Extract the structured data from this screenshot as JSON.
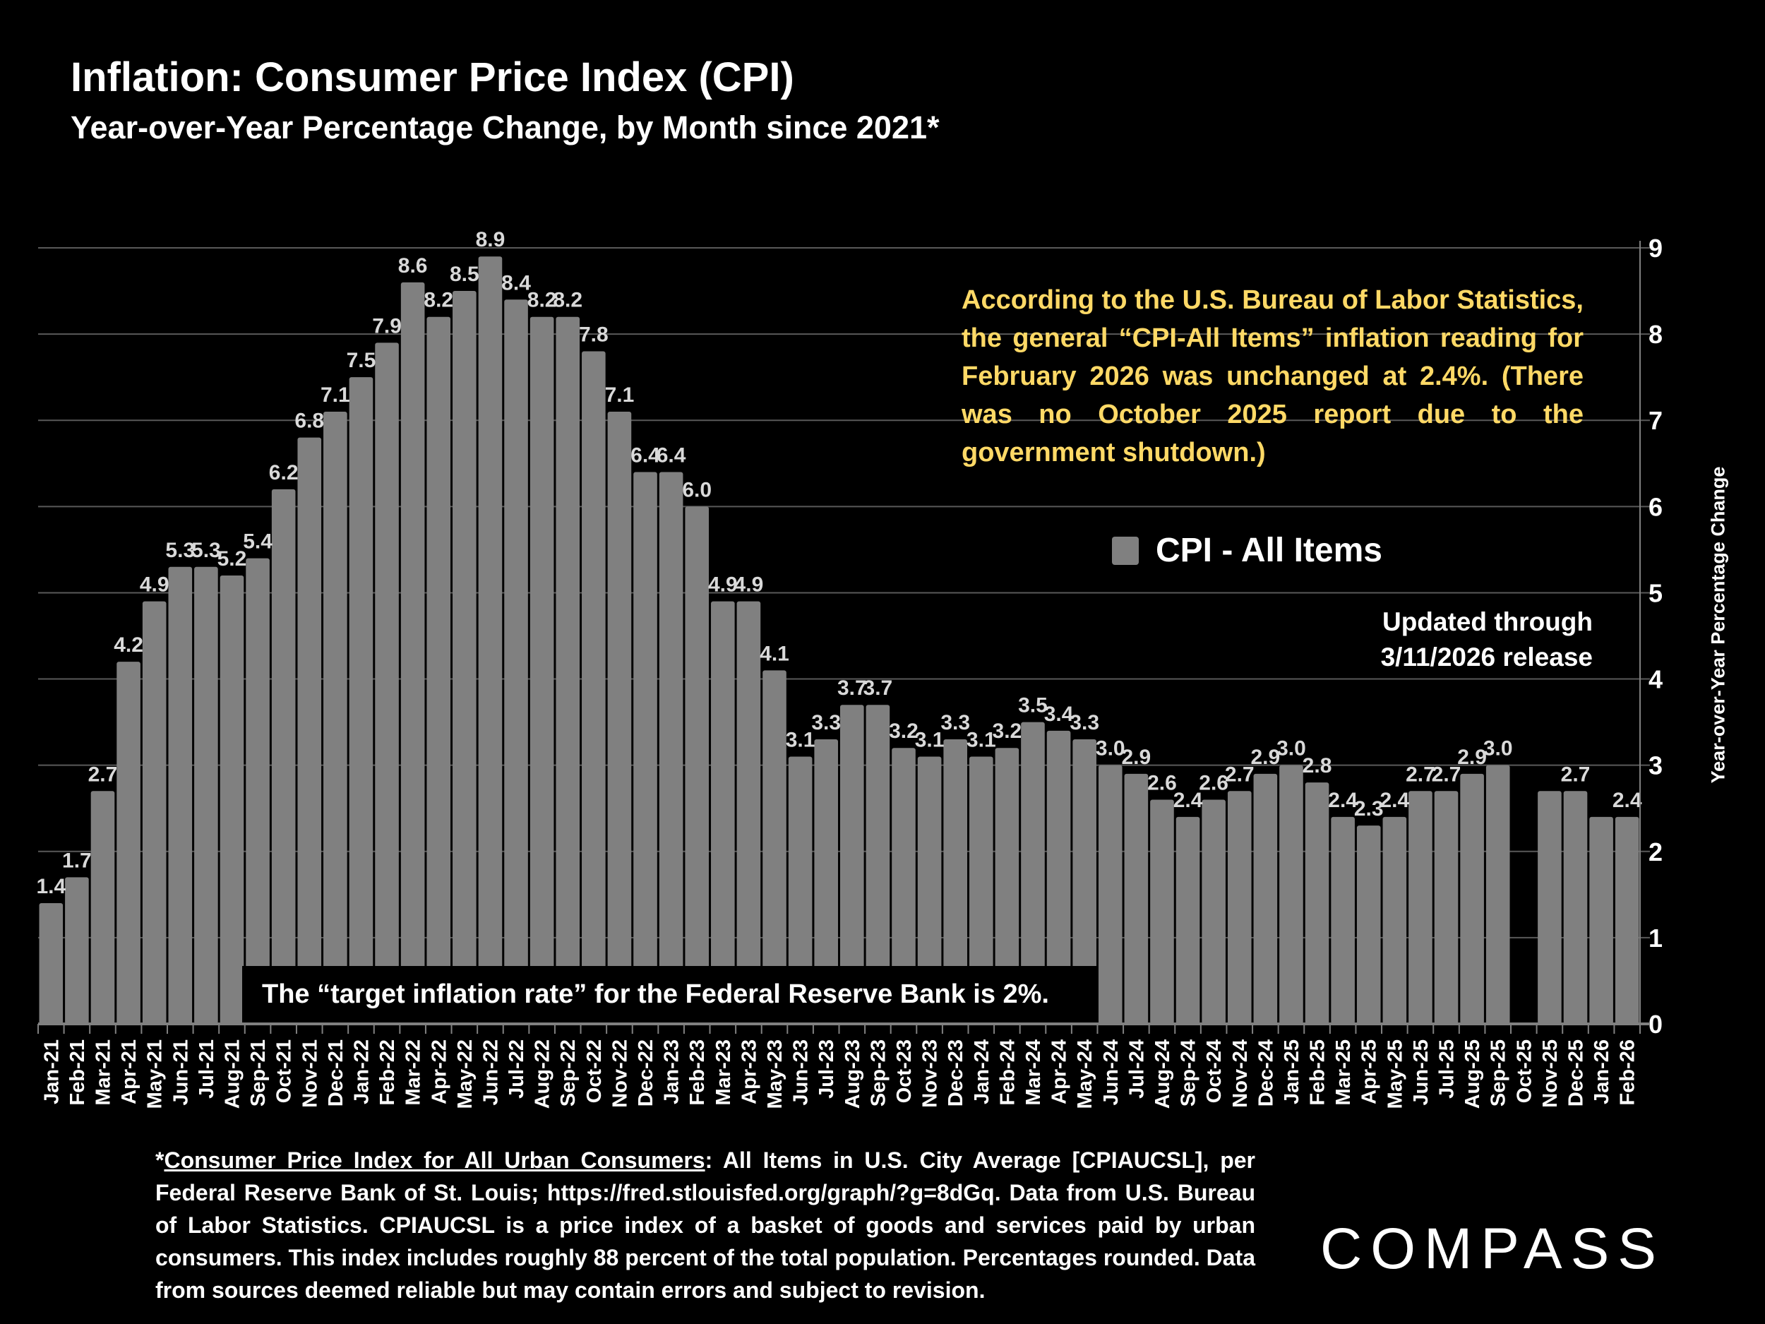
{
  "header": {
    "title": "Inflation: Consumer Price Index (CPI)",
    "subtitle": "Year-over-Year Percentage Change, by Month since 2021*"
  },
  "annotation": "According to the U.S. Bureau of Labor Statistics, the general “CPI-All Items” inflation reading for February 2026 was unchanged at 2.4%. (There was no October 2025 report due to the government shutdown.)",
  "updated": {
    "line1": "Updated through",
    "line2": "3/11/2026 release"
  },
  "target_note": "The “target inflation rate” for the Federal Reserve Bank is 2%.",
  "footnote": {
    "link_text": "Consumer Price Index for All Urban Consumers",
    "prefix": "*",
    "text": ": All Items in U.S. City Average [CPIAUCSL], per Federal Reserve Bank of St. Louis; https://fred.stlouisfed.org/graph/?g=8dGq. Data from U.S. Bureau of Labor Statistics. CPIAUCSL is a price index of a basket of goods and services paid by urban consumers. This index includes roughly 88 percent of the total population. Percentages rounded. Data from sources deemed reliable but may contain errors and subject to revision."
  },
  "logo": "COMPASS",
  "colors": {
    "bar": "#808080",
    "data_label": "#d9d9d9",
    "annotation": "#ffd966",
    "background": "#000000",
    "grid": "#595959"
  },
  "chart_data": {
    "type": "bar",
    "title": "Inflation: Consumer Price Index (CPI)",
    "subtitle": "Year-over-Year Percentage Change, by Month since 2021*",
    "xlabel": "",
    "ylabel": "Year-over-Year Percentage Change",
    "ylim": [
      0,
      9
    ],
    "yticks": [
      "0",
      "1",
      "2",
      "3",
      "4",
      "5",
      "6",
      "7",
      "8",
      "9"
    ],
    "y_axis_position": "right",
    "grid": true,
    "legend": {
      "position": "center-right",
      "entries": [
        "CPI - All Items"
      ]
    },
    "series": [
      {
        "name": "CPI - All Items"
      }
    ],
    "categories": [
      "Jan-21",
      "Feb-21",
      "Mar-21",
      "Apr-21",
      "May-21",
      "Jun-21",
      "Jul-21",
      "Aug-21",
      "Sep-21",
      "Oct-21",
      "Nov-21",
      "Dec-21",
      "Jan-22",
      "Feb-22",
      "Mar-22",
      "Apr-22",
      "May-22",
      "Jun-22",
      "Jul-22",
      "Aug-22",
      "Sep-22",
      "Oct-22",
      "Nov-22",
      "Dec-22",
      "Jan-23",
      "Feb-23",
      "Mar-23",
      "Apr-23",
      "May-23",
      "Jun-23",
      "Jul-23",
      "Aug-23",
      "Sep-23",
      "Oct-23",
      "Nov-23",
      "Dec-23",
      "Jan-24",
      "Feb-24",
      "Mar-24",
      "Apr-24",
      "May-24",
      "Jun-24",
      "Jul-24",
      "Aug-24",
      "Sep-24",
      "Oct-24",
      "Nov-24",
      "Dec-24",
      "Jan-25",
      "Feb-25",
      "Mar-25",
      "Apr-25",
      "May-25",
      "Jun-25",
      "Jul-25",
      "Aug-25",
      "Sep-25",
      "Oct-25",
      "Nov-25",
      "Dec-25",
      "Jan-26",
      "Feb-26"
    ],
    "values": [
      1.4,
      1.7,
      2.7,
      4.2,
      4.9,
      5.3,
      5.3,
      5.2,
      5.4,
      6.2,
      6.8,
      7.1,
      7.5,
      7.9,
      8.6,
      8.2,
      8.5,
      8.9,
      8.4,
      8.2,
      8.2,
      7.8,
      7.1,
      6.4,
      6.4,
      6.0,
      4.9,
      4.9,
      4.1,
      3.1,
      3.3,
      3.7,
      3.7,
      3.2,
      3.1,
      3.3,
      3.1,
      3.2,
      3.5,
      3.4,
      3.3,
      3.0,
      2.9,
      2.6,
      2.4,
      2.6,
      2.7,
      2.9,
      3.0,
      2.8,
      2.4,
      2.3,
      2.4,
      2.7,
      2.7,
      2.9,
      3.0,
      null,
      2.7,
      2.7,
      2.4,
      2.4
    ],
    "data_labels": [
      "1.4",
      "1.7",
      "2.7",
      "4.2",
      "4.9",
      "5.3",
      "5.3",
      "5.2",
      "5.4",
      "6.2",
      "6.8",
      "7.1",
      "7.5",
      "7.9",
      "8.6",
      "8.2",
      "8.5",
      "8.9",
      "8.4",
      "8.2",
      "8.2",
      "7.8",
      "7.1",
      "6.4",
      "6.4",
      "6.0",
      "4.9",
      "4.9",
      "4.1",
      "3.1",
      "3.3",
      "3.7",
      "3.7",
      "3.2",
      "3.1",
      "3.3",
      "3.1",
      "3.2",
      "3.5",
      "3.4",
      "3.3",
      "3.0",
      "2.9",
      "2.6",
      "2.4",
      "2.6",
      "2.7",
      "2.9",
      "3.0",
      "2.8",
      "2.4",
      "2.3",
      "2.4",
      "2.7",
      "2.7",
      "2.9",
      "3.0",
      null,
      null,
      "2.7",
      null,
      "2.4"
    ]
  }
}
